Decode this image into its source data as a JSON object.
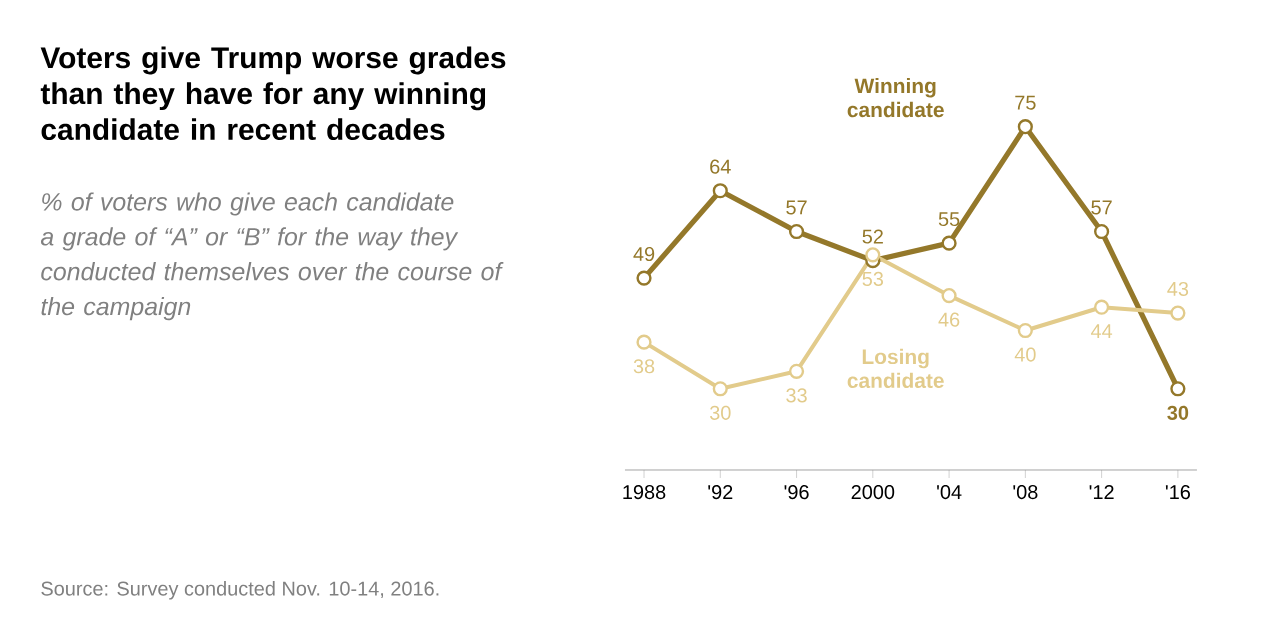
{
  "chart_data": {
    "type": "line",
    "title": "Voters give Trump worse grades than they have for any winning candidate in recent decades",
    "subtitle": "% of voters who give each candidate a grade of “A” or “B” for the way they conducted themselves over the course of the campaign",
    "categories": [
      "1988",
      "'92",
      "'96",
      "2000",
      "'04",
      "'08",
      "'12",
      "'16"
    ],
    "series": [
      {
        "name": "Winning candidate",
        "color": "#94782a",
        "values": [
          49,
          64,
          57,
          52,
          55,
          75,
          57,
          30
        ]
      },
      {
        "name": "Losing candidate",
        "color": "#e2cb8b",
        "values": [
          38,
          30,
          33,
          53,
          46,
          40,
          44,
          43
        ]
      }
    ],
    "data_labels": true,
    "marker": "circle",
    "annotations": [
      "Source: Survey conducted Nov. 10-14, 2016."
    ]
  }
}
